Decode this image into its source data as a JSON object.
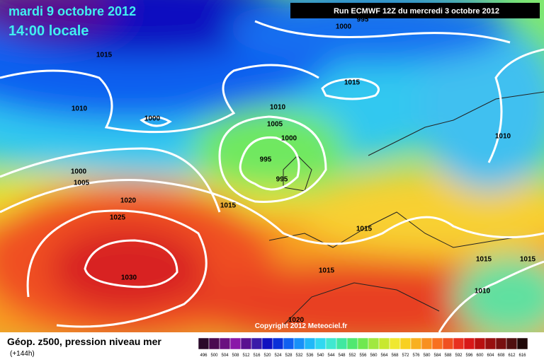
{
  "header": {
    "date": "mardi 9 octobre 2012",
    "time": "14:00 locale",
    "run": "Run ECMWF 12Z du mercredi 3 octobre 2012"
  },
  "copyright": "Copyright 2012 Meteociel.fr",
  "footer": {
    "title": "Géop. z500, pression niveau mer",
    "lead": "(+144h)"
  },
  "isobar_labels": [
    "995",
    "1000",
    "1015",
    "1015",
    "1010",
    "1010",
    "1000",
    "1005",
    "1000",
    "995",
    "995",
    "1010",
    "1000",
    "1005",
    "1020",
    "1015",
    "1025",
    "1015",
    "1030",
    "1015",
    "1015",
    "1015",
    "1010",
    "1020"
  ],
  "scale": [
    {
      "value": 496,
      "color": "#2a0a2a"
    },
    {
      "value": 500,
      "color": "#4a0a50"
    },
    {
      "value": 504,
      "color": "#6a1080"
    },
    {
      "value": 508,
      "color": "#8a18a8"
    },
    {
      "value": 512,
      "color": "#5a1090"
    },
    {
      "value": 516,
      "color": "#3a1aa8"
    },
    {
      "value": 520,
      "color": "#1010c0"
    },
    {
      "value": 524,
      "color": "#0a30d8"
    },
    {
      "value": 528,
      "color": "#1060f0"
    },
    {
      "value": 532,
      "color": "#1890f8"
    },
    {
      "value": 536,
      "color": "#20b8f8"
    },
    {
      "value": 540,
      "color": "#30d8f0"
    },
    {
      "value": 544,
      "color": "#40e8d0"
    },
    {
      "value": 548,
      "color": "#40e8a0"
    },
    {
      "value": 552,
      "color": "#50e870"
    },
    {
      "value": 556,
      "color": "#70e850"
    },
    {
      "value": 560,
      "color": "#a0e840"
    },
    {
      "value": 564,
      "color": "#c8e830"
    },
    {
      "value": 568,
      "color": "#f0e830"
    },
    {
      "value": 572,
      "color": "#f8d020"
    },
    {
      "value": 576,
      "color": "#f8b020"
    },
    {
      "value": 580,
      "color": "#f89020"
    },
    {
      "value": 584,
      "color": "#f87020"
    },
    {
      "value": 588,
      "color": "#f05020"
    },
    {
      "value": 592,
      "color": "#e83020"
    },
    {
      "value": 596,
      "color": "#d81818"
    },
    {
      "value": 600,
      "color": "#b81010"
    },
    {
      "value": 604,
      "color": "#981010"
    },
    {
      "value": 608,
      "color": "#781010"
    },
    {
      "value": 612,
      "color": "#501010"
    },
    {
      "value": 616,
      "color": "#200808"
    }
  ]
}
